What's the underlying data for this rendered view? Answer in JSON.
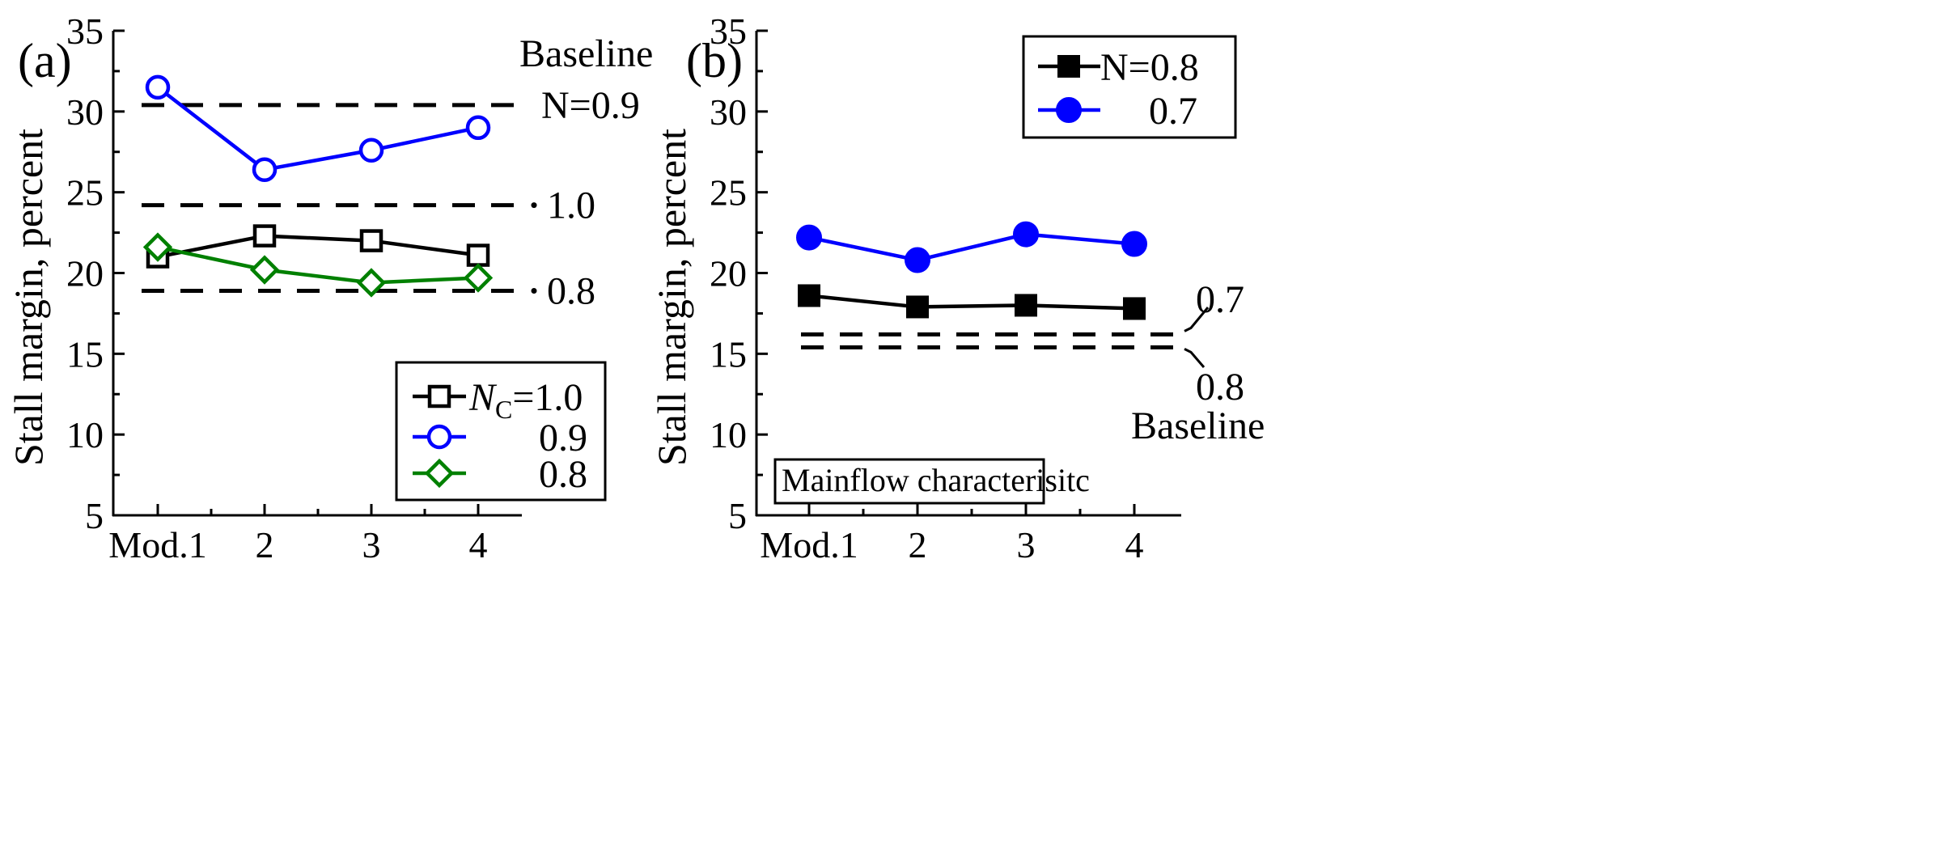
{
  "chart_data": [
    {
      "panel": "(a)",
      "type": "line",
      "ylabel": "Stall margin, percent",
      "xlabel": "",
      "categories": [
        "Mod.1",
        "2",
        "3",
        "4"
      ],
      "yticks": [
        "5",
        "10",
        "15",
        "20",
        "25",
        "30",
        "35"
      ],
      "ylim": [
        5,
        35
      ],
      "legend_title_symbol": "N",
      "legend_title_sub": "C",
      "legend_position": "bottom-right",
      "series": [
        {
          "name": "=1.0",
          "legend_label": "=1.0",
          "color": "#000000",
          "marker": "square-open",
          "values": [
            21.0,
            22.3,
            22.0,
            21.1
          ]
        },
        {
          "name": "0.9",
          "legend_label": "0.9",
          "color": "#0000ff",
          "marker": "circle-open",
          "values": [
            31.5,
            26.4,
            27.6,
            29.0
          ]
        },
        {
          "name": "0.8",
          "legend_label": "0.8",
          "color": "#008000",
          "marker": "diamond-open",
          "values": [
            21.6,
            20.2,
            19.4,
            19.7
          ]
        }
      ],
      "baselines": [
        {
          "label": "N=0.9",
          "value": 30.4
        },
        {
          "label": "1.0",
          "value": 24.2
        },
        {
          "label": "0.8",
          "value": 18.9
        }
      ],
      "baseline_title": "Baseline"
    },
    {
      "panel": "(b)",
      "type": "line",
      "ylabel": "Stall margin, percent",
      "xlabel": "",
      "categories": [
        "Mod.1",
        "2",
        "3",
        "4"
      ],
      "yticks": [
        "5",
        "10",
        "15",
        "20",
        "25",
        "30",
        "35"
      ],
      "ylim": [
        5,
        35
      ],
      "legend_position": "top-right",
      "series": [
        {
          "name": "N=0.8",
          "legend_label": "N=0.8",
          "color": "#000000",
          "marker": "square-filled",
          "values": [
            18.6,
            17.9,
            18.0,
            17.8
          ]
        },
        {
          "name": "0.7",
          "legend_label": "0.7",
          "color": "#0000ff",
          "marker": "circle-filled",
          "values": [
            22.2,
            20.8,
            22.4,
            21.8
          ]
        }
      ],
      "baselines": [
        {
          "label": "0.7",
          "value": 16.2
        },
        {
          "label": "0.8",
          "value": 15.4
        }
      ],
      "baseline_title": "Baseline",
      "annotation_box": "Mainflow characterisitc"
    }
  ]
}
